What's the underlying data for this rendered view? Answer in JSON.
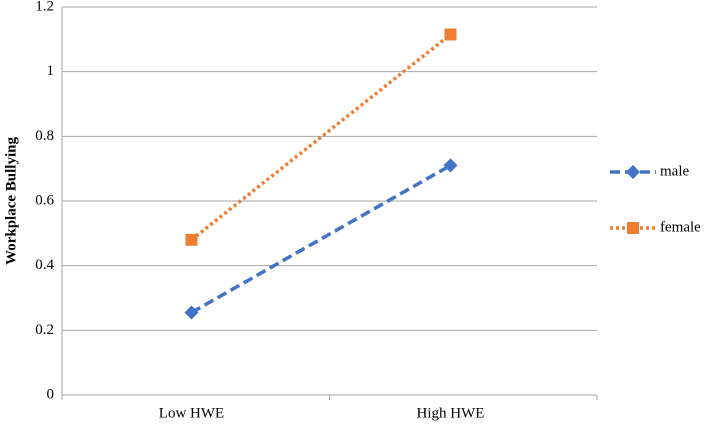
{
  "chart_data": {
    "type": "line",
    "y_label": "Workplace Bullying",
    "categories": [
      "Low HWE",
      "High HWE"
    ],
    "series": [
      {
        "name": "male",
        "color": "#4472c4",
        "line_style": "dashed",
        "marker": "diamond",
        "values": [
          0.255,
          0.71
        ]
      },
      {
        "name": "female",
        "color": "#ed7d31",
        "line_style": "dotted",
        "marker": "square",
        "values": [
          0.48,
          1.115
        ]
      }
    ],
    "ylim": [
      0,
      1.2
    ],
    "yticks": [
      0,
      0.2,
      0.4,
      0.6,
      0.8,
      1,
      1.2
    ],
    "grid": true,
    "legend": "right"
  }
}
